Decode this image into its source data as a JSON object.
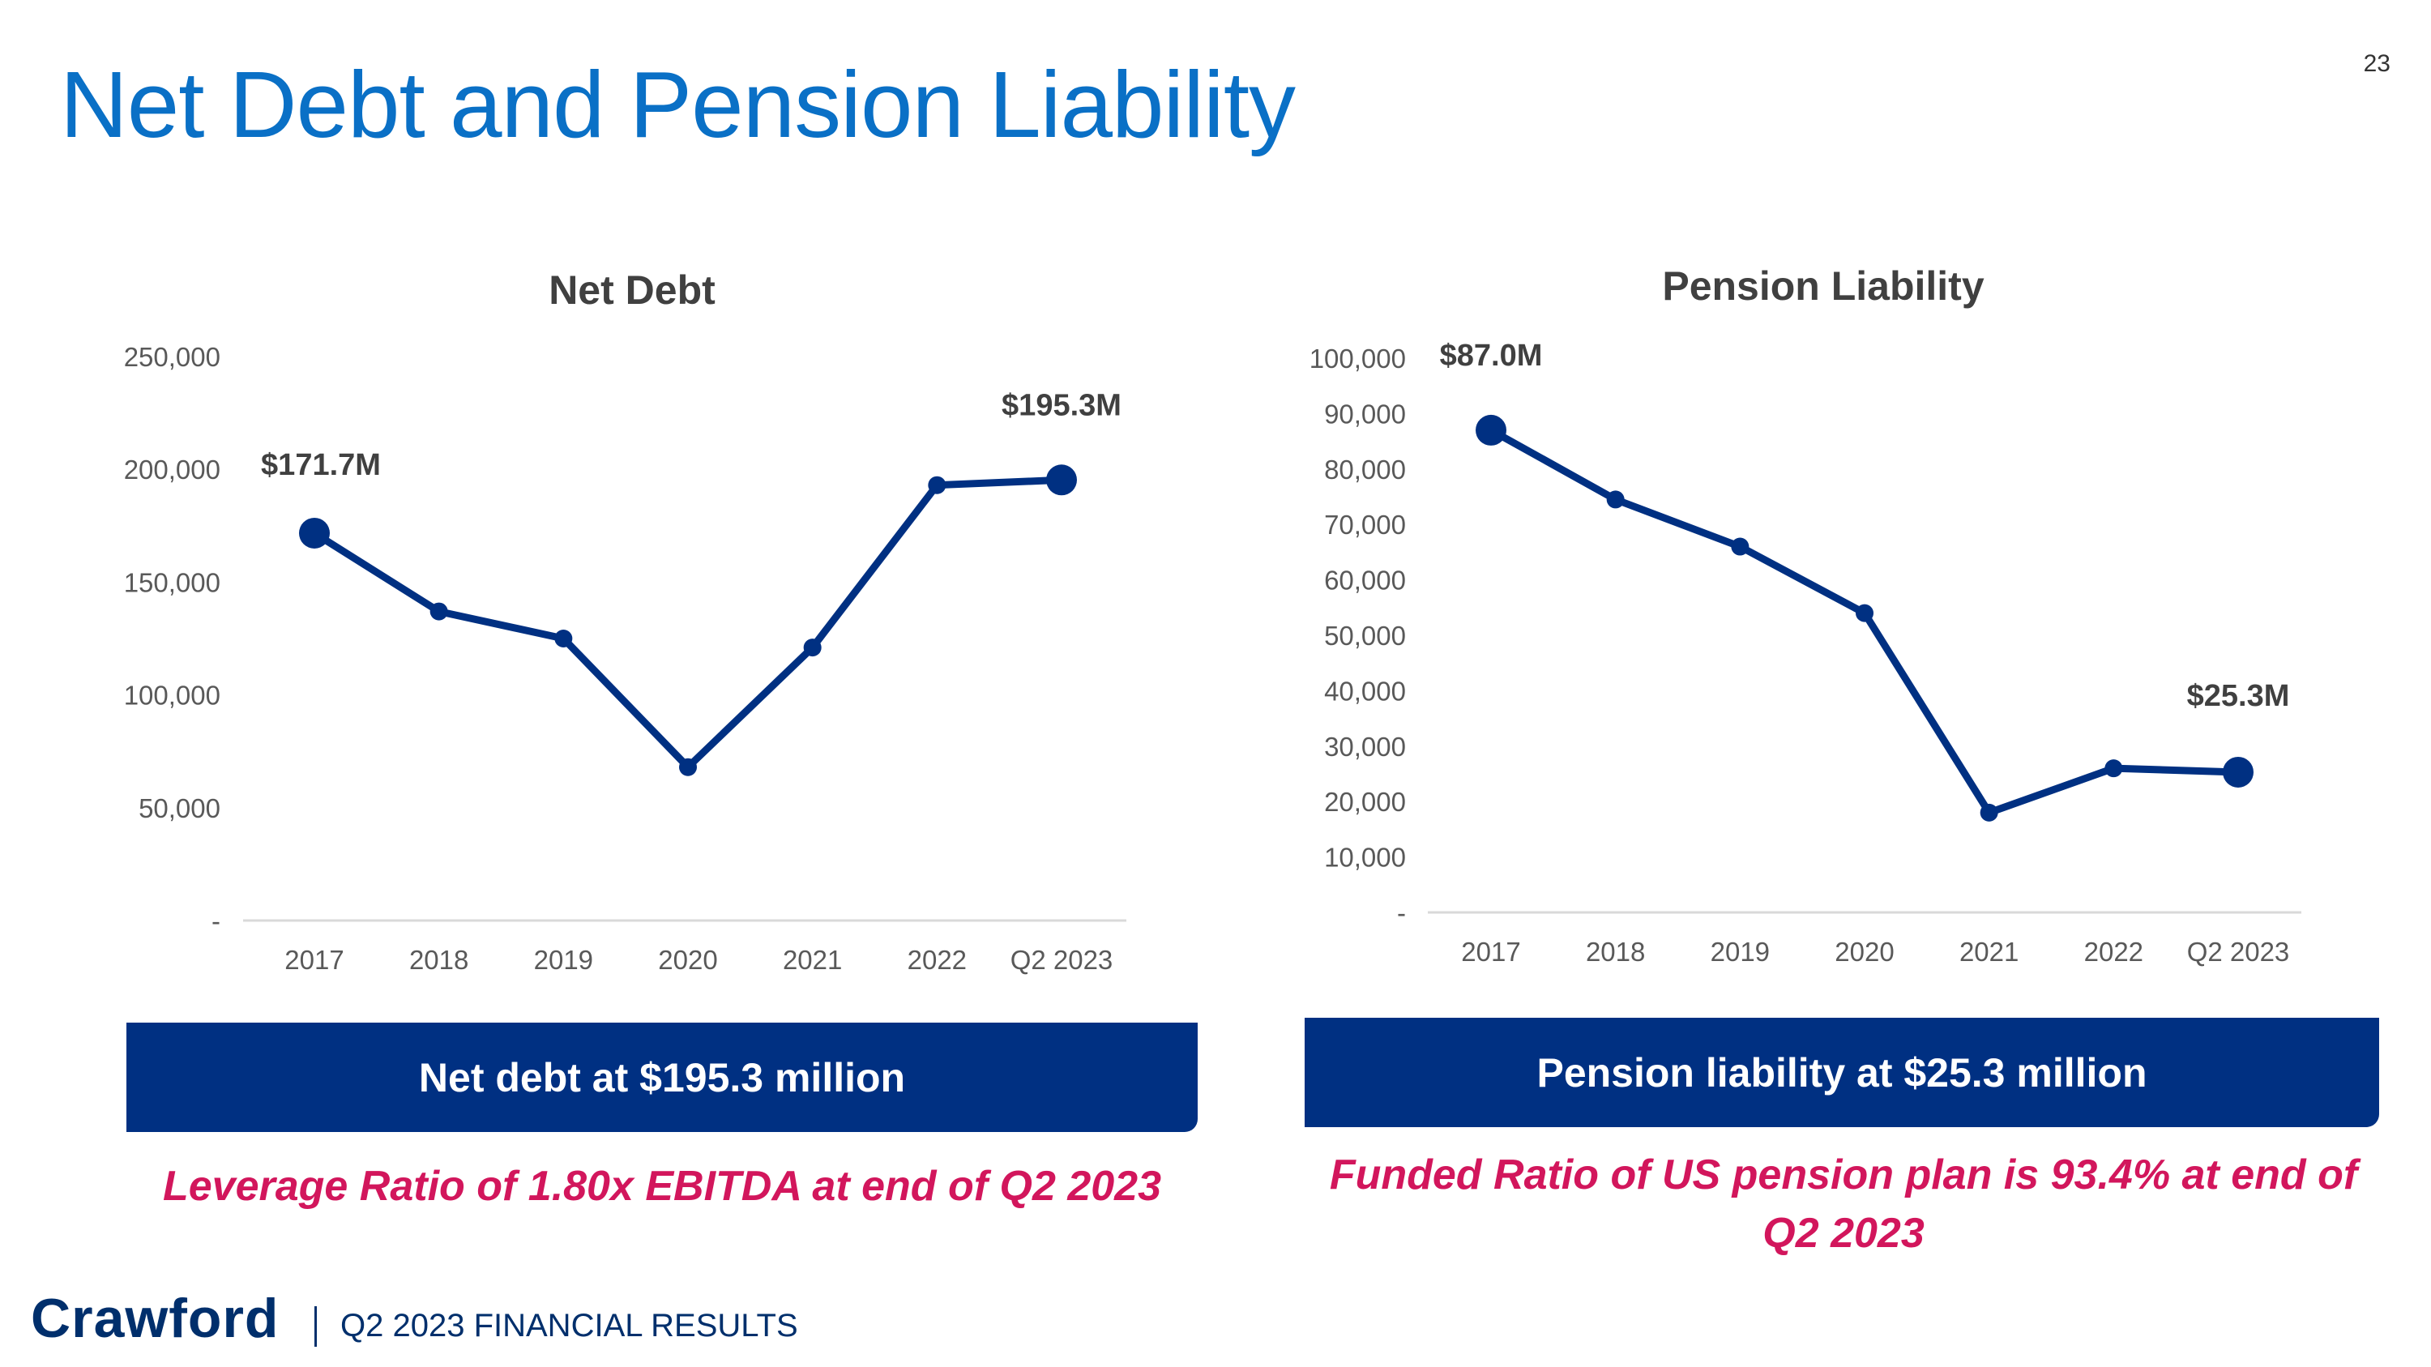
{
  "title": "Net Debt and Pension Liability",
  "page_number": "23",
  "colors": {
    "title_blue": "#0a70c6",
    "line_navy": "#003082",
    "banner_navy": "#003082",
    "highlight_pink": "#d2165c",
    "axis_text": "#595959"
  },
  "chart_data": [
    {
      "type": "line",
      "title": "Net Debt",
      "categories": [
        "2017",
        "2018",
        "2019",
        "2020",
        "2021",
        "2022",
        "Q2 2023"
      ],
      "values": [
        171700,
        137000,
        125000,
        68000,
        121000,
        193000,
        195300
      ],
      "yticks": [
        "-",
        "50,000",
        "100,000",
        "150,000",
        "200,000",
        "250,000"
      ],
      "ylim": [
        0,
        250000
      ],
      "grid": false,
      "data_labels": [
        {
          "index": 0,
          "text": "$171.7M"
        },
        {
          "index": 6,
          "text": "$195.3M"
        }
      ]
    },
    {
      "type": "line",
      "title": "Pension Liability",
      "categories": [
        "2017",
        "2018",
        "2019",
        "2020",
        "2021",
        "2022",
        "Q2 2023"
      ],
      "values": [
        87000,
        74500,
        66000,
        54000,
        18000,
        26000,
        25300
      ],
      "yticks": [
        "-",
        "10,000",
        "20,000",
        "30,000",
        "40,000",
        "50,000",
        "60,000",
        "70,000",
        "80,000",
        "90,000",
        "100,000"
      ],
      "ylim": [
        0,
        100000
      ],
      "grid": false,
      "data_labels": [
        {
          "index": 0,
          "text": "$87.0M"
        },
        {
          "index": 6,
          "text": "$25.3M"
        }
      ]
    }
  ],
  "banners": {
    "left": "Net debt at $195.3 million",
    "right": "Pension liability at $25.3 million"
  },
  "notes": {
    "left": "Leverage Ratio of 1.80x EBITDA at end of Q2 2023",
    "right": "Funded Ratio of US pension plan is 93.4% at end of Q2 2023"
  },
  "footer": {
    "logo": "Crawford",
    "text": "Q2 2023 FINANCIAL RESULTS"
  }
}
